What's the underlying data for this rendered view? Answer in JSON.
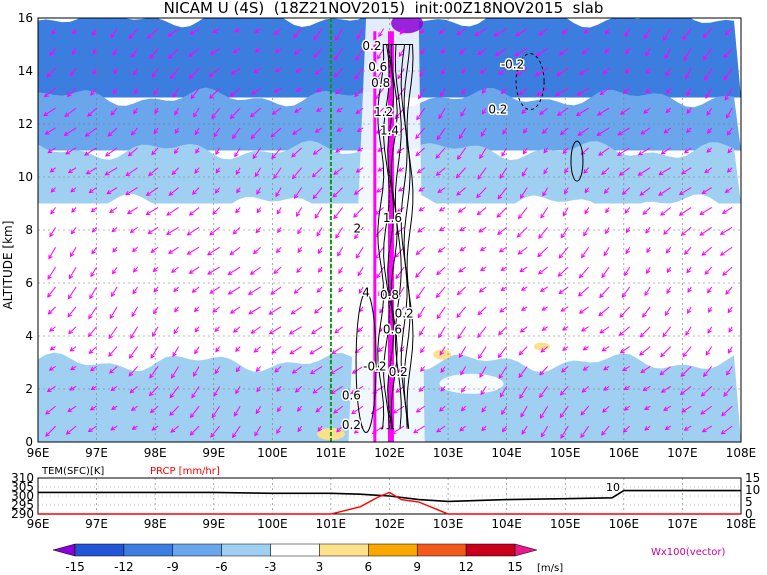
{
  "title": "NICAM U (4S)  (18Z21NOV2015)  init:00Z18NOV2015  slab",
  "chart_data": [
    {
      "type": "heatmap",
      "ylabel": "ALTITUDE [km]",
      "xlabel": "",
      "x_ticks": [
        "96E",
        "97E",
        "98E",
        "99E",
        "100E",
        "101E",
        "102E",
        "103E",
        "104E",
        "105E",
        "106E",
        "107E",
        "108E"
      ],
      "y_ticks": [
        "0",
        "2",
        "4",
        "6",
        "8",
        "10",
        "12",
        "14",
        "16"
      ],
      "xlim": [
        96,
        108
      ],
      "ylim": [
        0,
        16
      ],
      "grid": true,
      "marker_line_lon": 101.0,
      "contour_labels": [
        "0.2",
        "0.6",
        "0.8",
        "1.2",
        "1.4",
        "1.6",
        "2",
        "4",
        "0.8",
        "0.2",
        "0.6",
        "-0.2",
        "0.2",
        "0.6",
        "0.2",
        "-0.2",
        "0.2"
      ],
      "vector_label": "Wx100(vector)",
      "bands": [
        {
          "ymin": 13,
          "ymax": 16,
          "value": -12
        },
        {
          "ymin": 11,
          "ymax": 13,
          "value": -9
        },
        {
          "ymin": 9,
          "ymax": 11,
          "value": -6
        },
        {
          "ymin": 6,
          "ymax": 9,
          "value": -3
        },
        {
          "ymin": 3,
          "ymax": 6,
          "value": -3
        },
        {
          "ymin": 0,
          "ymax": 3,
          "value": -6
        }
      ]
    },
    {
      "type": "line",
      "legend_left": "TEM(SFC)[K]",
      "legend_right": "PRCP [mm/hr]",
      "y_ticks_left": [
        "290",
        "295",
        "300",
        "305",
        "310"
      ],
      "y_ticks_right": [
        "0",
        "5",
        "10",
        "15"
      ],
      "x_ticks": [
        "96E",
        "97E",
        "98E",
        "99E",
        "100E",
        "101E",
        "102E",
        "103E",
        "104E",
        "105E",
        "106E",
        "107E",
        "108E"
      ],
      "annotation": "10",
      "series": [
        {
          "name": "TEM(SFC)[K]",
          "x": [
            96,
            99,
            100,
            101,
            101.5,
            102,
            102.5,
            103,
            104,
            105,
            105.8,
            106,
            107,
            108
          ],
          "y": [
            302,
            302,
            301.5,
            301.5,
            301,
            300,
            298,
            297,
            298,
            298.5,
            299,
            303,
            303,
            303
          ]
        },
        {
          "name": "PRCP [mm/hr]",
          "x": [
            96,
            101,
            101.5,
            101.8,
            102,
            102.2,
            102.5,
            102.8,
            103,
            108
          ],
          "y": [
            0,
            0,
            3,
            7,
            9,
            6,
            5,
            2,
            0,
            0
          ]
        }
      ]
    }
  ],
  "colorbar": {
    "labels": [
      "-15",
      "-12",
      "-9",
      "-6",
      "-3",
      "3",
      "6",
      "9",
      "12",
      "15"
    ],
    "unit": "[m/s]",
    "colors": [
      "#8c00d7",
      "#2255d6",
      "#3c7ee0",
      "#6aa6ec",
      "#9fd0f2",
      "#ffffff",
      "#fde08a",
      "#f9a800",
      "#f25a1c",
      "#c8001c",
      "#e8198a"
    ]
  },
  "colors": {
    "vector": "#ff00ff",
    "contour": "#000000",
    "marker": "#009f00",
    "temp": "#000000",
    "prcp": "#ff0000"
  }
}
